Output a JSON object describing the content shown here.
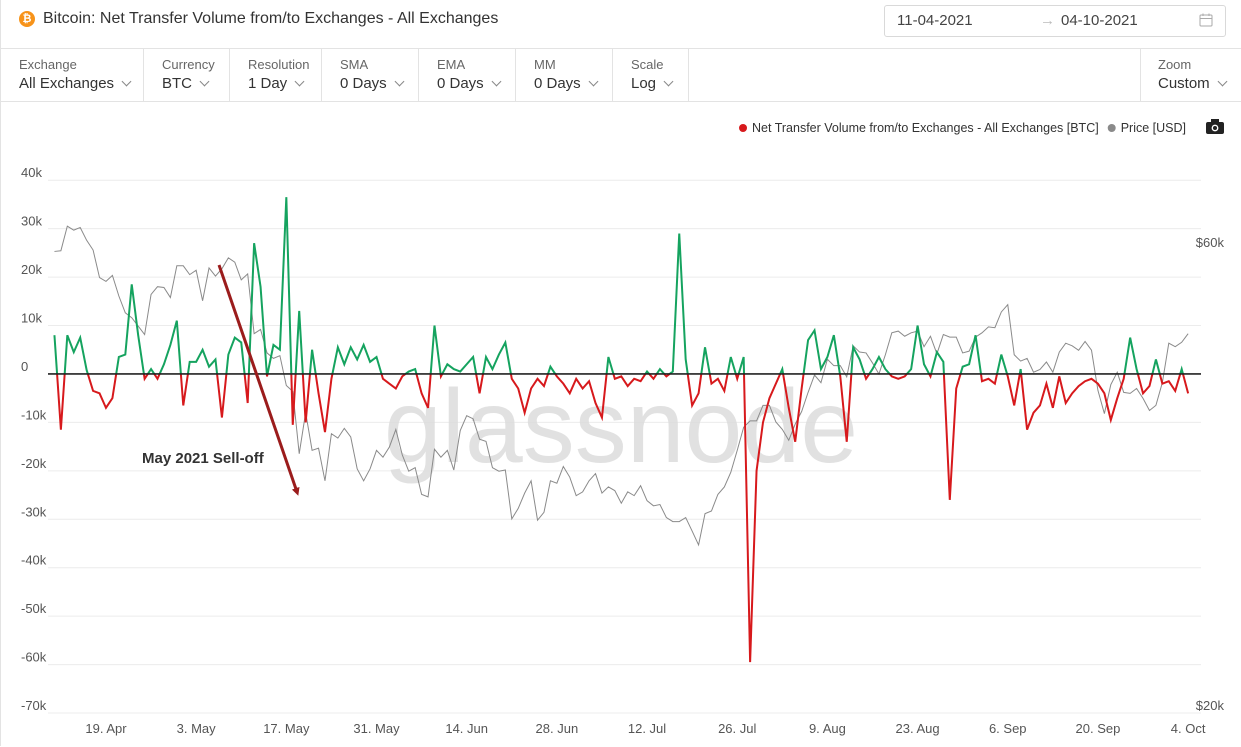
{
  "header": {
    "title": "Bitcoin: Net Transfer Volume from/to Exchanges - All Exchanges",
    "date_from": "11-04-2021",
    "date_to": "04-10-2021"
  },
  "controls": [
    {
      "label": "Exchange",
      "value": "All Exchanges"
    },
    {
      "label": "Currency",
      "value": "BTC"
    },
    {
      "label": "Resolution",
      "value": "1 Day"
    },
    {
      "label": "SMA",
      "value": "0 Days"
    },
    {
      "label": "EMA",
      "value": "0 Days"
    },
    {
      "label": "MM",
      "value": "0 Days"
    },
    {
      "label": "Scale",
      "value": "Log"
    }
  ],
  "zoom": {
    "label": "Zoom",
    "value": "Custom"
  },
  "watermark": "glassnode",
  "chart_data": {
    "type": "line",
    "legend": "top-right",
    "zero_line": true,
    "y2_log": true,
    "annotations": [
      {
        "text": "May 2021 Sell-off"
      }
    ],
    "xlim": [
      "2021-04-10",
      "2021-10-06"
    ],
    "xticks": [
      {
        "value": "2021-04-19",
        "label": "19. Apr"
      },
      {
        "value": "2021-05-03",
        "label": "3. May"
      },
      {
        "value": "2021-05-17",
        "label": "17. May"
      },
      {
        "value": "2021-05-31",
        "label": "31. May"
      },
      {
        "value": "2021-06-14",
        "label": "14. Jun"
      },
      {
        "value": "2021-06-28",
        "label": "28. Jun"
      },
      {
        "value": "2021-07-12",
        "label": "12. Jul"
      },
      {
        "value": "2021-07-26",
        "label": "26. Jul"
      },
      {
        "value": "2021-08-09",
        "label": "9. Aug"
      },
      {
        "value": "2021-08-23",
        "label": "23. Aug"
      },
      {
        "value": "2021-09-06",
        "label": "6. Sep"
      },
      {
        "value": "2021-09-20",
        "label": "20. Sep"
      },
      {
        "value": "2021-10-04",
        "label": "4. Oct"
      }
    ],
    "ylim": [
      -70000,
      45000
    ],
    "yticks": [
      {
        "value": 40000,
        "label": "40k"
      },
      {
        "value": 30000,
        "label": "30k"
      },
      {
        "value": 20000,
        "label": "20k"
      },
      {
        "value": 10000,
        "label": "10k"
      },
      0,
      {
        "value": -10000,
        "label": "-10k"
      },
      {
        "value": -20000,
        "label": "-20k"
      },
      {
        "value": -30000,
        "label": "-30k"
      },
      {
        "value": -40000,
        "label": "-40k"
      },
      {
        "value": -50000,
        "label": "-50k"
      },
      {
        "value": -60000,
        "label": "-60k"
      },
      {
        "value": -70000,
        "label": "-70k"
      }
    ],
    "y2lim": [
      20000,
      75000
    ],
    "y2ticks": [
      {
        "value": 20000,
        "label": "$20k"
      },
      {
        "value": 60000,
        "label": "$60k"
      }
    ],
    "x": [
      "2021-04-11",
      "2021-04-12",
      "2021-04-13",
      "2021-04-14",
      "2021-04-15",
      "2021-04-16",
      "2021-04-17",
      "2021-04-18",
      "2021-04-19",
      "2021-04-20",
      "2021-04-21",
      "2021-04-22",
      "2021-04-23",
      "2021-04-24",
      "2021-04-25",
      "2021-04-26",
      "2021-04-27",
      "2021-04-28",
      "2021-04-29",
      "2021-04-30",
      "2021-05-01",
      "2021-05-02",
      "2021-05-03",
      "2021-05-04",
      "2021-05-05",
      "2021-05-06",
      "2021-05-07",
      "2021-05-08",
      "2021-05-09",
      "2021-05-10",
      "2021-05-11",
      "2021-05-12",
      "2021-05-13",
      "2021-05-14",
      "2021-05-15",
      "2021-05-16",
      "2021-05-17",
      "2021-05-18",
      "2021-05-19",
      "2021-05-20",
      "2021-05-21",
      "2021-05-22",
      "2021-05-23",
      "2021-05-24",
      "2021-05-25",
      "2021-05-26",
      "2021-05-27",
      "2021-05-28",
      "2021-05-29",
      "2021-05-30",
      "2021-05-31",
      "2021-06-01",
      "2021-06-02",
      "2021-06-03",
      "2021-06-04",
      "2021-06-05",
      "2021-06-06",
      "2021-06-07",
      "2021-06-08",
      "2021-06-09",
      "2021-06-10",
      "2021-06-11",
      "2021-06-12",
      "2021-06-13",
      "2021-06-14",
      "2021-06-15",
      "2021-06-16",
      "2021-06-17",
      "2021-06-18",
      "2021-06-19",
      "2021-06-20",
      "2021-06-21",
      "2021-06-22",
      "2021-06-23",
      "2021-06-24",
      "2021-06-25",
      "2021-06-26",
      "2021-06-27",
      "2021-06-28",
      "2021-06-29",
      "2021-06-30",
      "2021-07-01",
      "2021-07-02",
      "2021-07-03",
      "2021-07-04",
      "2021-07-05",
      "2021-07-06",
      "2021-07-07",
      "2021-07-08",
      "2021-07-09",
      "2021-07-10",
      "2021-07-11",
      "2021-07-12",
      "2021-07-13",
      "2021-07-14",
      "2021-07-15",
      "2021-07-16",
      "2021-07-17",
      "2021-07-18",
      "2021-07-19",
      "2021-07-20",
      "2021-07-21",
      "2021-07-22",
      "2021-07-23",
      "2021-07-24",
      "2021-07-25",
      "2021-07-26",
      "2021-07-27",
      "2021-07-28",
      "2021-07-29",
      "2021-07-30",
      "2021-07-31",
      "2021-08-01",
      "2021-08-02",
      "2021-08-03",
      "2021-08-04",
      "2021-08-05",
      "2021-08-06",
      "2021-08-07",
      "2021-08-08",
      "2021-08-09",
      "2021-08-10",
      "2021-08-11",
      "2021-08-12",
      "2021-08-13",
      "2021-08-14",
      "2021-08-15",
      "2021-08-16",
      "2021-08-17",
      "2021-08-18",
      "2021-08-19",
      "2021-08-20",
      "2021-08-21",
      "2021-08-22",
      "2021-08-23",
      "2021-08-24",
      "2021-08-25",
      "2021-08-26",
      "2021-08-27",
      "2021-08-28",
      "2021-08-29",
      "2021-08-30",
      "2021-08-31",
      "2021-09-01",
      "2021-09-02",
      "2021-09-03",
      "2021-09-04",
      "2021-09-05",
      "2021-09-06",
      "2021-09-07",
      "2021-09-08",
      "2021-09-09",
      "2021-09-10",
      "2021-09-11",
      "2021-09-12",
      "2021-09-13",
      "2021-09-14",
      "2021-09-15",
      "2021-09-16",
      "2021-09-17",
      "2021-09-18",
      "2021-09-19",
      "2021-09-20",
      "2021-09-21",
      "2021-09-22",
      "2021-09-23",
      "2021-09-24",
      "2021-09-25",
      "2021-09-26",
      "2021-09-27",
      "2021-09-28",
      "2021-09-29",
      "2021-09-30",
      "2021-10-01",
      "2021-10-02",
      "2021-10-03",
      "2021-10-04"
    ],
    "series": [
      {
        "name": "Net Transfer Volume from/to Exchanges - All Exchanges [BTC]",
        "color": "#d7191c",
        "positive_color": "#15a35f",
        "values": [
          8000,
          -11500,
          8000,
          4500,
          7500,
          800,
          -3500,
          -4000,
          -7000,
          -5000,
          3500,
          4000,
          18500,
          8000,
          -1000,
          1000,
          -1000,
          2000,
          6000,
          11000,
          -6500,
          2500,
          2500,
          5000,
          1500,
          3000,
          -9000,
          4000,
          7500,
          6500,
          -6000,
          27000,
          18000,
          -500,
          6000,
          5000,
          36500,
          -10500,
          13000,
          -10000,
          5000,
          -4000,
          -12000,
          -1000,
          5500,
          2000,
          5500,
          3000,
          6000,
          2500,
          3500,
          -1000,
          -2000,
          -3000,
          -500,
          500,
          1000,
          -4000,
          -7000,
          10000,
          -500,
          2000,
          1000,
          500,
          2000,
          3500,
          -4000,
          3500,
          1000,
          4000,
          6500,
          -1000,
          -3000,
          -8000,
          -3000,
          -1000,
          -2500,
          1500,
          -500,
          -2000,
          -4000,
          -1000,
          -3000,
          -1500,
          -6000,
          -9000,
          3500,
          -1000,
          -500,
          -2500,
          -1000,
          -1500,
          500,
          -1000,
          1000,
          -500,
          500,
          29000,
          3000,
          -6500,
          -4000,
          5500,
          -2000,
          -1000,
          -3500,
          3500,
          -1000,
          3500,
          -59500,
          -20000,
          -10000,
          -5000,
          -2000,
          1000,
          -7000,
          -14000,
          -3000,
          7000,
          9000,
          1000,
          3500,
          8000,
          -500,
          -14000,
          5500,
          3000,
          -1000,
          1000,
          3500,
          1000,
          -500,
          -1000,
          -500,
          1000,
          10000,
          2000,
          -500,
          4500,
          2500,
          -26000,
          -3000,
          1500,
          2000,
          8000,
          -1500,
          -1000,
          -2000,
          4000,
          -500,
          -6500,
          1000,
          -11500,
          -8000,
          -6500,
          -2000,
          -7000,
          -500,
          -6000,
          -4000,
          -2500,
          -1500,
          -1000,
          -2000,
          -4000,
          -9500,
          -5000,
          -1000,
          7500,
          1000,
          -4000,
          -2500,
          3000,
          -2000,
          -1500,
          -3500,
          1000,
          -4000
        ]
      },
      {
        "name": "Price [USD]",
        "color": "#8a8a8a",
        "axis": "y2",
        "values": [
          59800,
          59900,
          63500,
          62900,
          63300,
          61400,
          60000,
          56200,
          55700,
          56500,
          53800,
          51700,
          51100,
          50100,
          49100,
          54000,
          55000,
          54900,
          53600,
          57800,
          57800,
          56600,
          57200,
          53200,
          57500,
          56400,
          57400,
          58900,
          58300,
          55900,
          56700,
          49200,
          49700,
          47000,
          46400,
          46700,
          43500,
          42900,
          37000,
          40800,
          37300,
          37500,
          34700,
          38800,
          38400,
          39300,
          38500,
          35700,
          34700,
          35700,
          37300,
          36700,
          37600,
          39200,
          36900,
          35500,
          35800,
          33600,
          33400,
          37400,
          36700,
          37300,
          35600,
          39100,
          40500,
          40200,
          38300,
          38100,
          35800,
          35500,
          35600,
          31700,
          32500,
          33700,
          34700,
          31600,
          32200,
          34700,
          34500,
          35900,
          35000,
          33500,
          33800,
          34700,
          35300,
          33700,
          34200,
          33900,
          32900,
          33800,
          33500,
          34300,
          33100,
          32700,
          32800,
          31800,
          31500,
          31500,
          31800,
          30800,
          29800,
          32100,
          32300,
          33600,
          34200,
          35400,
          37300,
          39400,
          40000,
          40000,
          41500,
          41500,
          39900,
          39200,
          38200,
          39700,
          40900,
          42800,
          44600,
          43800,
          46300,
          45600,
          45600,
          44400,
          47800,
          47100,
          47000,
          45900,
          44700,
          46800,
          49300,
          49500,
          48900,
          49300,
          49500,
          47700,
          48900,
          46900,
          49100,
          48800,
          48800,
          47000,
          47200,
          48800,
          49300,
          50000,
          49900,
          51800,
          52700,
          46800,
          46100,
          46400,
          44900,
          45200,
          46000,
          44900,
          47100,
          48100,
          47800,
          47300,
          48300,
          47300,
          43000,
          40700,
          43600,
          44900,
          42800,
          42700,
          43200,
          42200,
          41000,
          41500,
          43800,
          48100,
          47700,
          48200,
          49200
        ]
      }
    ]
  }
}
